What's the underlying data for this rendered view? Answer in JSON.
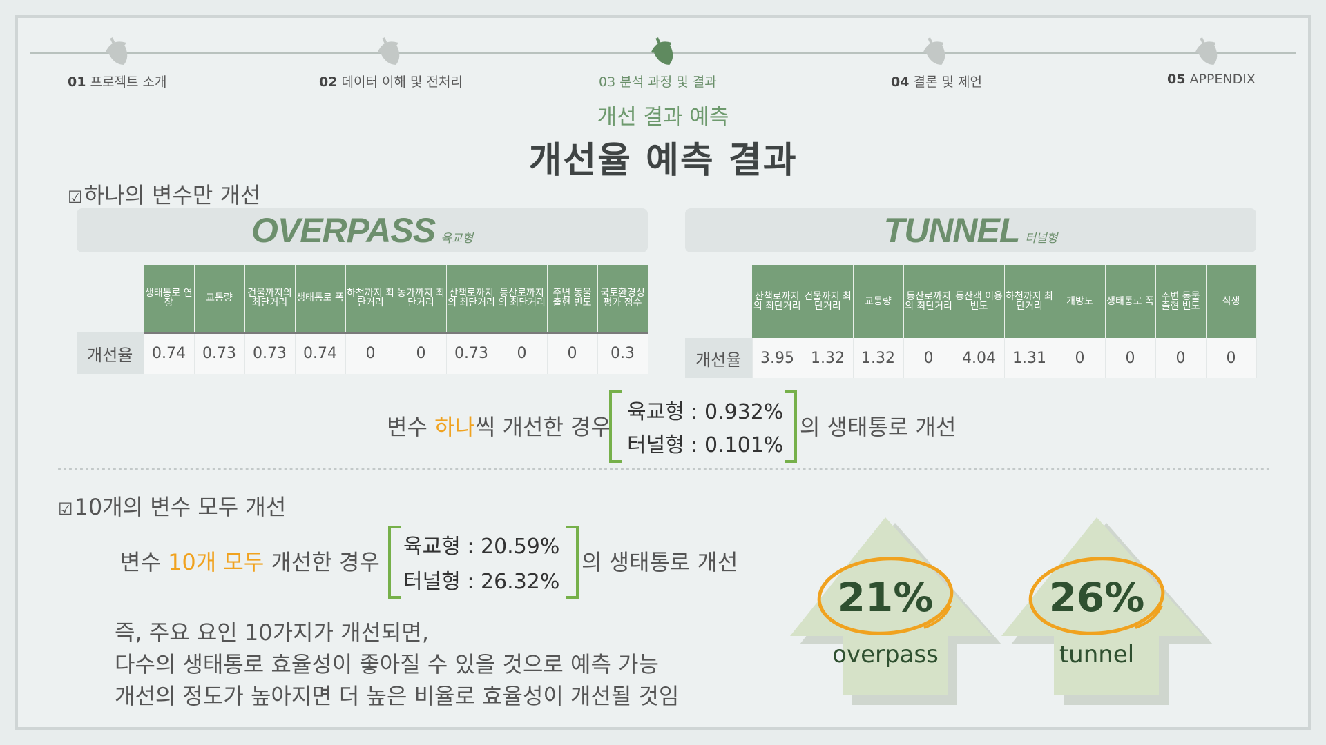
{
  "nav": {
    "items": [
      {
        "num": "01",
        "label": "프로젝트 소개"
      },
      {
        "num": "02",
        "label": "데이터 이해 및 전처리"
      },
      {
        "num": "03",
        "label": "분석 과정 및 결과"
      },
      {
        "num": "04",
        "label": "결론 및 제언"
      },
      {
        "num": "05",
        "label": "APPENDIX"
      }
    ],
    "active_index": 2,
    "icon": "acorn-icon",
    "active_color": "#5f8a5f",
    "inactive_color": "#c3c8c6"
  },
  "header": {
    "subtitle": "개선 결과 예측",
    "title": "개선율 예측 결과"
  },
  "section1": {
    "label": "하나의 변수만 개선",
    "overpass": {
      "title": "OVERPASS",
      "subtitle": "육교형",
      "row_label": "개선율",
      "columns": [
        "생태통로 연장",
        "교통량",
        "건물까지의 최단거리",
        "생태통로 폭",
        "하천까지 최단거리",
        "농가까지 최단거리",
        "산책로까지의 최단거리",
        "등산로까지의 최단거리",
        "주변 동물 출현 빈도",
        "국토환경성 평가 점수"
      ],
      "values": [
        "0.74",
        "0.73",
        "0.73",
        "0.74",
        "0",
        "0",
        "0.73",
        "0",
        "0",
        "0.3"
      ]
    },
    "tunnel": {
      "title": "TUNNEL",
      "subtitle": "터널형",
      "row_label": "개선율",
      "columns": [
        "산책로까지의 최단거리",
        "건물까지 최단거리",
        "교통량",
        "등산로까지의 최단거리",
        "등산객 이용빈도",
        "하천까지 최단거리",
        "개방도",
        "생태통로 폭",
        "주변 동물 출현 빈도",
        "식생"
      ],
      "values": [
        "3.95",
        "1.32",
        "1.32",
        "0",
        "4.04",
        "1.31",
        "0",
        "0",
        "0",
        "0"
      ]
    },
    "sentence": {
      "prefix": "변수 ",
      "highlight": "하나",
      "middle": "씩 개선한 경우",
      "line1": "육교형 : 0.932%",
      "line2": "터널형 : 0.101%",
      "suffix": "의 생태통로 개선"
    }
  },
  "section2": {
    "label": "10개의 변수 모두 개선",
    "sentence": {
      "prefix": "변수 ",
      "highlight": "10개 모두",
      "middle": " 개선한 경우",
      "line1": "육교형 : 20.59%",
      "line2": "터널형 : 26.32%",
      "suffix": "의 생태통로 개선"
    },
    "conclusion": [
      "즉, 주요 요인 10가지가 개선되면,",
      "다수의 생태통로 효율성이 좋아질 수 있을 것으로 예측 가능",
      "개선의 정도가 높아지면 더 높은 비율로 효율성이 개선될 것임"
    ],
    "arrows": [
      {
        "percent": "21%",
        "label": "overpass"
      },
      {
        "percent": "26%",
        "label": "tunnel"
      }
    ],
    "arrow_color": "#d6e2c8",
    "circle_color": "#f0a21f"
  },
  "colors": {
    "table_header": "#779f79",
    "highlight": "#f0a21f",
    "bracket": "#76b04a",
    "accent_text": "#6d8f6d"
  }
}
